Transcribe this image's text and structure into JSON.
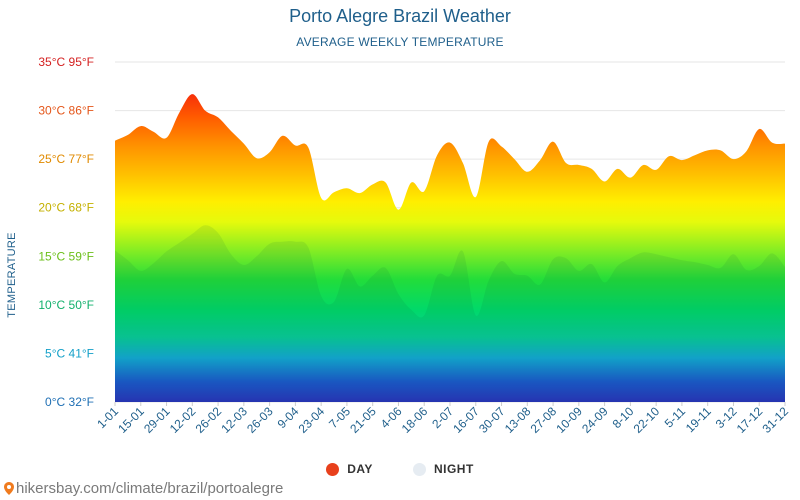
{
  "header": {
    "title": "Porto Alegre Brazil Weather",
    "subtitle": "AVERAGE WEEKLY TEMPERATURE"
  },
  "footer": {
    "url": "hikersbay.com/climate/brazil/portoalegre"
  },
  "colors": {
    "title": "#1f5f8b",
    "day_legend": "#e8401c",
    "night_legend": "#e6ecf2",
    "gridline": "#e6e6e6"
  },
  "chart_data": {
    "type": "area",
    "title": "Porto Alegre Brazil Weather",
    "subtitle": "AVERAGE WEEKLY TEMPERATURE",
    "ylabel": "TEMPERATURE",
    "xlabel": "",
    "ylim": [
      0,
      35
    ],
    "y_ticks": [
      {
        "value": 0,
        "label": "0°C 32°F"
      },
      {
        "value": 5,
        "label": "5°C 41°F"
      },
      {
        "value": 10,
        "label": "10°C 50°F"
      },
      {
        "value": 15,
        "label": "15°C 59°F"
      },
      {
        "value": 20,
        "label": "20°C 68°F"
      },
      {
        "value": 25,
        "label": "25°C 77°F"
      },
      {
        "value": 30,
        "label": "30°C 86°F"
      },
      {
        "value": 35,
        "label": "35°C 95°F"
      }
    ],
    "x_tick_labels": [
      "1-01",
      "15-01",
      "29-01",
      "12-02",
      "26-02",
      "12-03",
      "26-03",
      "9-04",
      "23-04",
      "7-05",
      "21-05",
      "4-06",
      "18-06",
      "2-07",
      "16-07",
      "30-07",
      "13-08",
      "27-08",
      "10-09",
      "24-09",
      "8-10",
      "22-10",
      "5-11",
      "19-11",
      "3-12",
      "17-12",
      "31-12"
    ],
    "grid": true,
    "legend_position": "bottom",
    "series": [
      {
        "name": "DAY",
        "values": [
          26.9,
          27.5,
          28.4,
          27.8,
          27.2,
          29.8,
          31.7,
          30.0,
          29.3,
          27.9,
          26.6,
          25.1,
          25.7,
          27.4,
          26.4,
          26.2,
          21.0,
          21.6,
          22.0,
          21.5,
          22.4,
          22.6,
          19.8,
          22.6,
          21.7,
          25.4,
          26.7,
          24.6,
          21.1,
          26.8,
          26.3,
          25.0,
          23.7,
          24.9,
          26.8,
          24.6,
          24.4,
          24.0,
          22.7,
          24.0,
          23.1,
          24.4,
          23.9,
          25.3,
          24.9,
          25.4,
          25.9,
          25.9,
          25.0,
          25.8,
          28.1,
          26.7,
          26.6
        ]
      },
      {
        "name": "NIGHT",
        "values": [
          15.6,
          14.6,
          13.5,
          14.3,
          15.5,
          16.4,
          17.3,
          18.2,
          17.4,
          15.2,
          14.1,
          15.0,
          16.3,
          16.5,
          16.5,
          15.9,
          10.9,
          10.3,
          13.7,
          11.9,
          13.0,
          13.8,
          11.1,
          9.5,
          8.9,
          13.0,
          13.0,
          15.5,
          8.9,
          12.5,
          14.5,
          13.2,
          13.0,
          12.1,
          14.7,
          14.8,
          13.5,
          14.2,
          12.3,
          14.0,
          14.8,
          15.4,
          15.2,
          14.9,
          14.6,
          14.4,
          14.1,
          13.8,
          15.2,
          13.6,
          14.0,
          15.3,
          13.9
        ]
      }
    ]
  }
}
